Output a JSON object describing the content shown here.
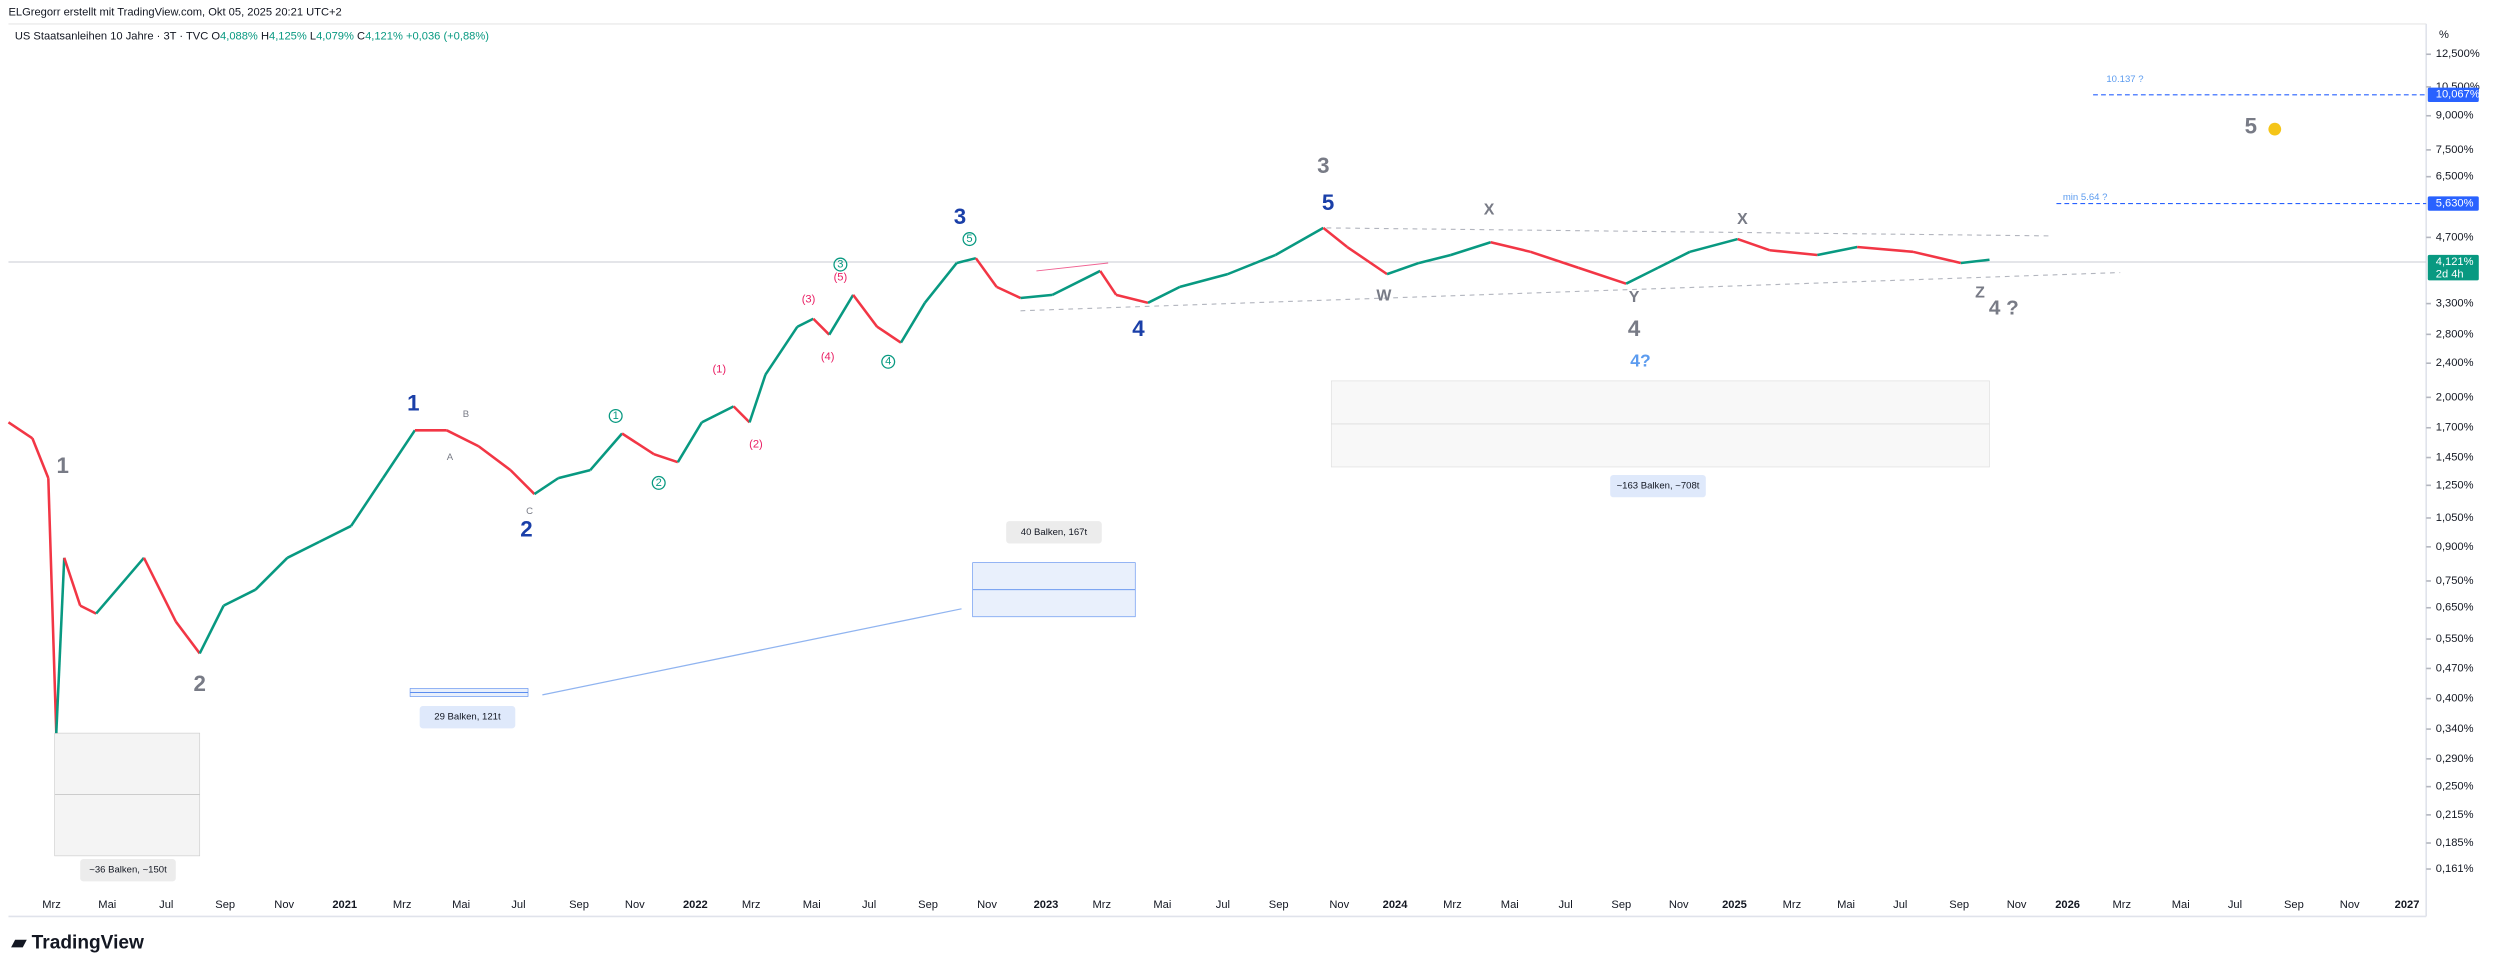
{
  "header": {
    "credit": "ELGregorr erstellt mit TradingView.com, Okt 05, 2025 20:21 UTC+2",
    "symbol": "US Staatsanleihen 10 Jahre · 3T · TVC",
    "ohlc": [
      {
        "key": "O",
        "value": "4,088%"
      },
      {
        "key": "H",
        "value": "4,125%"
      },
      {
        "key": "L",
        "value": "4,079%"
      },
      {
        "key": "C",
        "value": "4,121%"
      }
    ],
    "change": "+0,036 (+0,88%)"
  },
  "price_axis": {
    "unit": "%",
    "scale": "log",
    "range": [
      0.125,
      14.7
    ],
    "ticks": [
      {
        "value": 12.5,
        "label": "12,500%"
      },
      {
        "value": 10.5,
        "label": "10,500%"
      },
      {
        "value": 9,
        "label": "9,000%"
      },
      {
        "value": 7.5,
        "label": "7,500%"
      },
      {
        "value": 6.5,
        "label": "6,500%"
      },
      {
        "value": 4.7,
        "label": "4,700%"
      },
      {
        "value": 3.3,
        "label": "3,300%"
      },
      {
        "value": 2.8,
        "label": "2,800%"
      },
      {
        "value": 2.4,
        "label": "2,400%"
      },
      {
        "value": 2,
        "label": "2,000%"
      },
      {
        "value": 1.7,
        "label": "1,700%"
      },
      {
        "value": 1.45,
        "label": "1,450%"
      },
      {
        "value": 1.25,
        "label": "1,250%"
      },
      {
        "value": 1.05,
        "label": "1,050%"
      },
      {
        "value": 0.9,
        "label": "0,900%"
      },
      {
        "value": 0.75,
        "label": "0,750%"
      },
      {
        "value": 0.65,
        "label": "0,650%"
      },
      {
        "value": 0.55,
        "label": "0,550%"
      },
      {
        "value": 0.47,
        "label": "0,470%"
      },
      {
        "value": 0.4,
        "label": "0,400%"
      },
      {
        "value": 0.34,
        "label": "0,340%"
      },
      {
        "value": 0.29,
        "label": "0,290%"
      },
      {
        "value": 0.25,
        "label": "0,250%"
      },
      {
        "value": 0.215,
        "label": "0,215%"
      },
      {
        "value": 0.185,
        "label": "0,185%"
      },
      {
        "value": 0.161,
        "label": "0,161%"
      }
    ],
    "badges": [
      {
        "value": 10.067,
        "label": "10,067%",
        "color": "#2962ff"
      },
      {
        "value": 5.63,
        "label": "5,630%",
        "color": "#2962ff"
      },
      {
        "value": 4.121,
        "label": "4,121%",
        "sub": "2d 4h",
        "color": "#089981"
      }
    ]
  },
  "time_axis": [
    "Mrz",
    "Mai",
    "Jul",
    "Sep",
    "Nov",
    "2021",
    "Mrz",
    "Mai",
    "Jul",
    "Sep",
    "Nov",
    "2022",
    "Mrz",
    "Mai",
    "Jul",
    "Sep",
    "Nov",
    "2023",
    "Mrz",
    "Mai",
    "Jul",
    "Sep",
    "Nov",
    "2024",
    "Mrz",
    "Mai",
    "Jul",
    "Sep",
    "Nov",
    "2025",
    "Mrz",
    "Mai",
    "Jul",
    "Sep",
    "Nov",
    "2026",
    "Mrz",
    "Mai",
    "Jul",
    "Sep",
    "Nov",
    "2027"
  ],
  "annotations": [
    "1",
    "2",
    "1",
    "A",
    "B",
    "C",
    "2",
    "1",
    "2",
    "(1)",
    "(2)",
    "(3)",
    "(4)",
    "(5)",
    "3",
    "4",
    "5",
    "3",
    "4",
    "3",
    "5",
    "X",
    "W",
    "Y",
    "X",
    "Z",
    "4",
    "4?",
    "4 ?",
    "5",
    "10.137 ?",
    "min 5.64 ?"
  ],
  "measurements": [
    "~36 Balken, ~150t",
    "29 Balken, 121t",
    "40 Balken, 167t",
    "~163 Balken, ~708t"
  ],
  "footer": {
    "logo": "TradingView"
  }
}
